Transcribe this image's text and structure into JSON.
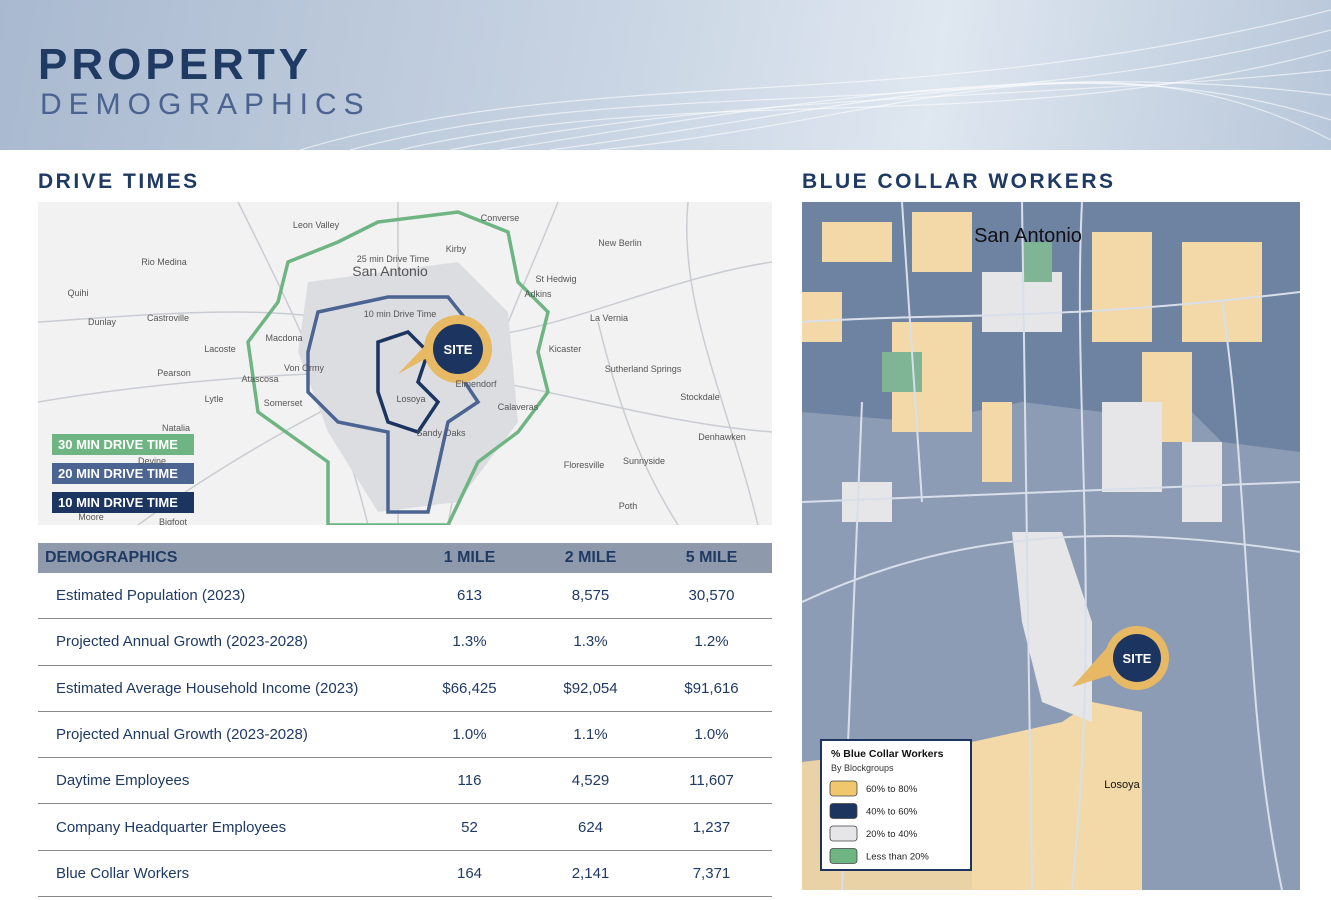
{
  "header": {
    "title": "PROPERTY",
    "subtitle": "DEMOGRAPHICS"
  },
  "drive_times": {
    "title": "DRIVE TIMES",
    "legend": [
      "30 MIN DRIVE TIME",
      "20 MIN DRIVE TIME",
      "10 MIN DRIVE TIME"
    ],
    "site": "SITE",
    "map_labels": [
      "Leon Valley",
      "Converse",
      "New Berlin",
      "Rio Medina",
      "San Antonio",
      "25 min Drive Time",
      "St Hedwig",
      "Adkins",
      "Quihi",
      "Dunlay",
      "Castroville",
      "10 min Drive Time",
      "La Vernia",
      "Macdona",
      "Lacoste",
      "Kicaster",
      "Von Ormy",
      "Pearson",
      "Atascosa",
      "Sutherland Springs",
      "Elmendorf",
      "Stockdale",
      "Lytle",
      "Somerset",
      "Losoya",
      "Calaveras",
      "Natalia",
      "Sandy Oaks",
      "Denhawken",
      "Devine",
      "Floresville",
      "Sunnyside",
      "Moore",
      "Poth",
      "Bigfoot",
      "Kirby"
    ]
  },
  "table": {
    "header": [
      "DEMOGRAPHICS",
      "1 MILE",
      "2 MILE",
      "5 MILE"
    ],
    "rows": [
      [
        "Estimated Population (2023)",
        "613",
        "8,575",
        "30,570"
      ],
      [
        "Projected Annual Growth (2023-2028)",
        "1.3%",
        "1.3%",
        "1.2%"
      ],
      [
        "Estimated Average Household Income (2023)",
        "$66,425",
        "$92,054",
        "$91,616"
      ],
      [
        "Projected Annual Growth (2023-2028)",
        "1.0%",
        "1.1%",
        "1.0%"
      ],
      [
        "Daytime Employees",
        "116",
        "4,529",
        "11,607"
      ],
      [
        "Company Headquarter Employees",
        "52",
        "624",
        "1,237"
      ],
      [
        "Blue Collar Workers",
        "164",
        "2,141",
        "7,371"
      ]
    ]
  },
  "blue_collar": {
    "title": "BLUE COLLAR WORKERS",
    "site": "SITE",
    "map_labels": [
      "San Antonio",
      "Losoya"
    ],
    "legend": {
      "title": "% Blue Collar Workers",
      "subtitle": "By Blockgroups",
      "items": [
        "60% to 80%",
        "40% to 60%",
        "20% to 40%",
        "Less than 20%"
      ]
    }
  }
}
